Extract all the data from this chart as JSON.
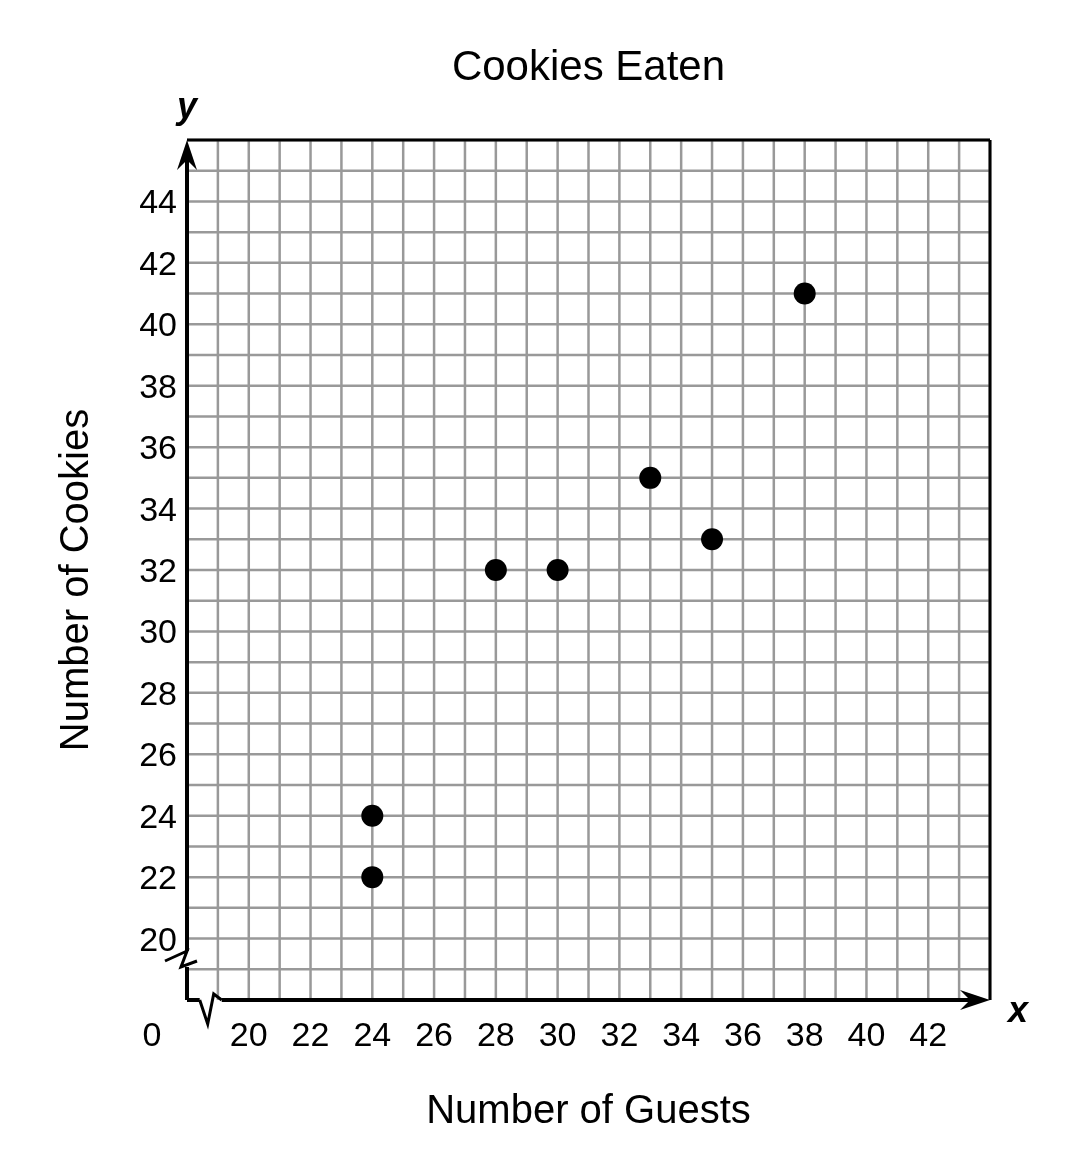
{
  "chart_data": {
    "type": "scatter",
    "title": "Cookies Eaten",
    "xlabel": "Number of Guests",
    "ylabel": "Number of Cookies",
    "annotations": [
      "y",
      "x",
      "0"
    ],
    "x": [
      24,
      24,
      28,
      30,
      33,
      35,
      38
    ],
    "values": [
      24,
      22,
      32,
      32,
      35,
      33,
      41
    ],
    "color": "#000000",
    "marker": "circle",
    "grid": true,
    "xlim": [
      18,
      44
    ],
    "xticks": [
      20,
      22,
      24,
      26,
      28,
      30,
      32,
      34,
      36,
      38,
      40,
      42
    ],
    "ylim": [
      18,
      46
    ],
    "yticks": [
      20,
      22,
      24,
      26,
      28,
      30,
      32,
      34,
      36,
      38,
      40,
      42,
      44
    ]
  }
}
